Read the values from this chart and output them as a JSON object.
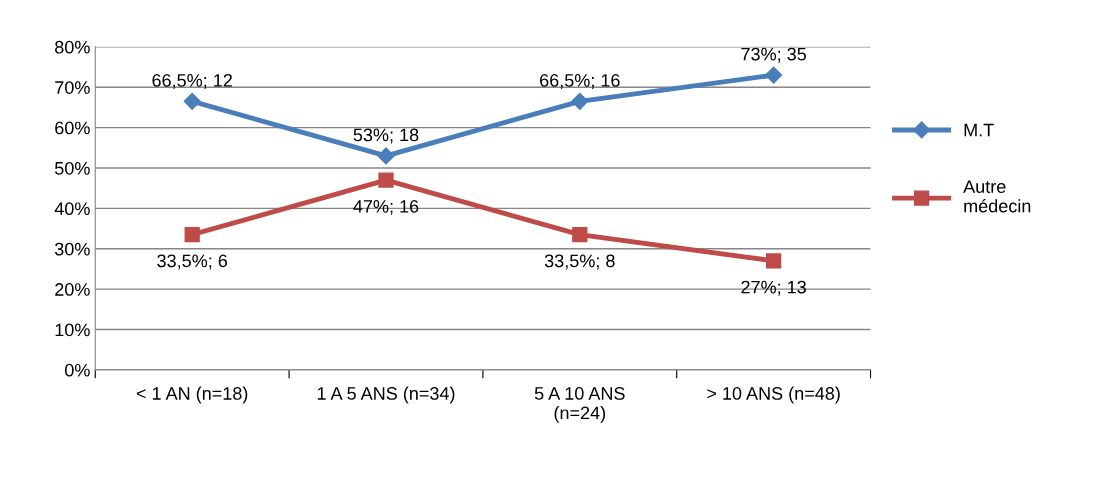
{
  "chart_data": {
    "type": "line",
    "categories": [
      "< 1 AN (n=18)",
      "1 A 5 ANS (n=34)",
      "5 A 10 ANS\n(n=24)",
      "> 10 ANS (n=48)"
    ],
    "series": [
      {
        "name": "M.T",
        "color": "#4a7ebb",
        "marker": "diamond",
        "values": [
          66.5,
          53,
          66.5,
          73
        ],
        "value_labels": [
          "66,5%; 12",
          "53%; 18",
          "66,5%; 16",
          "73%; 35"
        ]
      },
      {
        "name": "Autre\nmédecin",
        "color": "#be4b48",
        "marker": "square",
        "values": [
          33.5,
          47,
          33.5,
          27
        ],
        "value_labels": [
          "33,5%; 6",
          "47%; 16",
          "33,5%; 8",
          "27%; 13"
        ]
      }
    ],
    "ylim": [
      0,
      80
    ],
    "yticks": [
      {
        "value": 0,
        "label": "0%"
      },
      {
        "value": 10,
        "label": "10%"
      },
      {
        "value": 20,
        "label": "20%"
      },
      {
        "value": 30,
        "label": "30%"
      },
      {
        "value": 40,
        "label": "40%"
      },
      {
        "value": 50,
        "label": "50%"
      },
      {
        "value": 60,
        "label": "60%"
      },
      {
        "value": 70,
        "label": "70%"
      },
      {
        "value": 80,
        "label": "80%"
      }
    ],
    "grid": "y",
    "legend": "right",
    "line_style": "solid"
  }
}
